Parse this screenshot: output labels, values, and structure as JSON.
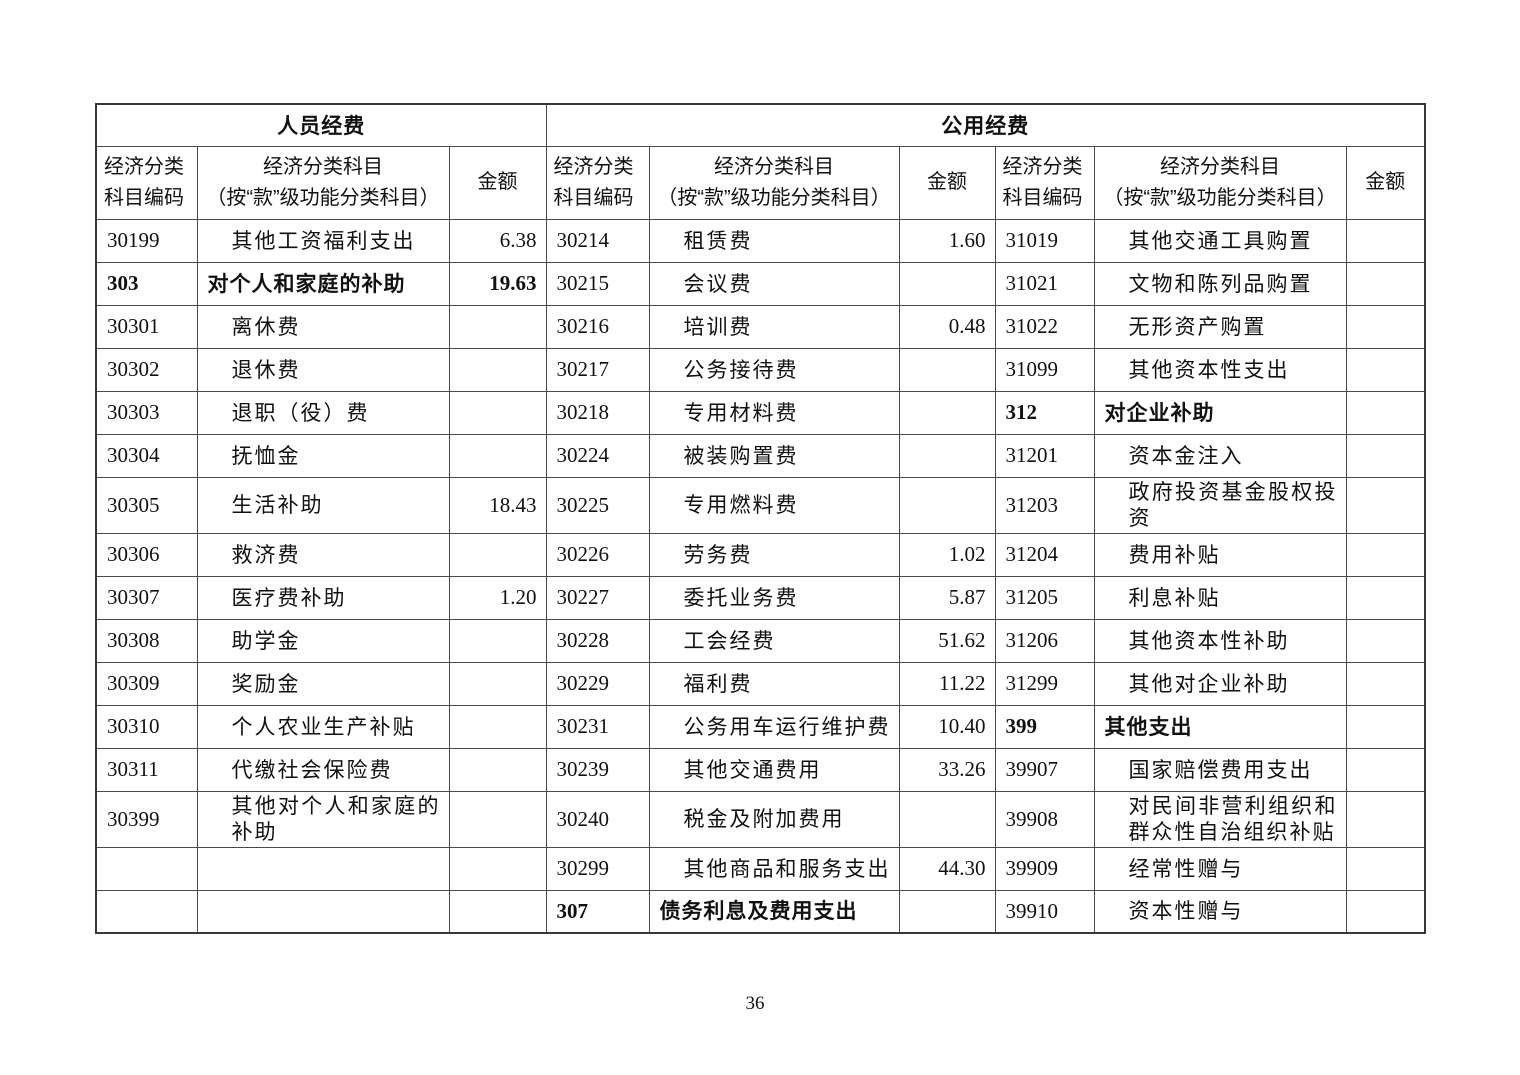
{
  "page_number": "36",
  "table": {
    "sections": [
      {
        "title": "人员经费"
      },
      {
        "title": "公用经费"
      }
    ],
    "column_headers": {
      "code_line1": "经济分类",
      "code_line2": "科目编码",
      "subject_line1": "经济分类科目",
      "subject_line2": "（按“款”级功能分类科目）",
      "amount": "金额"
    },
    "groups": [
      {
        "rows": [
          {
            "code": "30199",
            "name": "其他工资福利支出",
            "amount": "6.38"
          },
          {
            "code": "303",
            "name": "对个人和家庭的补助",
            "amount": "19.63",
            "section": true
          },
          {
            "code": "30301",
            "name": "离休费",
            "amount": ""
          },
          {
            "code": "30302",
            "name": "退休费",
            "amount": ""
          },
          {
            "code": "30303",
            "name": "退职（役）费",
            "amount": ""
          },
          {
            "code": "30304",
            "name": "抚恤金",
            "amount": ""
          },
          {
            "code": "30305",
            "name": "生活补助",
            "amount": "18.43"
          },
          {
            "code": "30306",
            "name": "救济费",
            "amount": ""
          },
          {
            "code": "30307",
            "name": "医疗费补助",
            "amount": "1.20"
          },
          {
            "code": "30308",
            "name": "助学金",
            "amount": ""
          },
          {
            "code": "30309",
            "name": "奖励金",
            "amount": ""
          },
          {
            "code": "30310",
            "name": "个人农业生产补贴",
            "amount": ""
          },
          {
            "code": "30311",
            "name": "代缴社会保险费",
            "amount": ""
          },
          {
            "code": "30399",
            "name": "其他对个人和家庭的补助",
            "amount": "",
            "wrap": true
          },
          {
            "code": "",
            "name": "",
            "amount": ""
          },
          {
            "code": "",
            "name": "",
            "amount": ""
          }
        ]
      },
      {
        "rows": [
          {
            "code": "30214",
            "name": "租赁费",
            "amount": "1.60"
          },
          {
            "code": "30215",
            "name": "会议费",
            "amount": ""
          },
          {
            "code": "30216",
            "name": "培训费",
            "amount": "0.48"
          },
          {
            "code": "30217",
            "name": "公务接待费",
            "amount": ""
          },
          {
            "code": "30218",
            "name": "专用材料费",
            "amount": ""
          },
          {
            "code": "30224",
            "name": "被装购置费",
            "amount": ""
          },
          {
            "code": "30225",
            "name": "专用燃料费",
            "amount": ""
          },
          {
            "code": "30226",
            "name": "劳务费",
            "amount": "1.02"
          },
          {
            "code": "30227",
            "name": "委托业务费",
            "amount": "5.87"
          },
          {
            "code": "30228",
            "name": "工会经费",
            "amount": "51.62"
          },
          {
            "code": "30229",
            "name": "福利费",
            "amount": "11.22"
          },
          {
            "code": "30231",
            "name": "公务用车运行维护费",
            "amount": "10.40"
          },
          {
            "code": "30239",
            "name": "其他交通费用",
            "amount": "33.26"
          },
          {
            "code": "30240",
            "name": "税金及附加费用",
            "amount": ""
          },
          {
            "code": "30299",
            "name": "其他商品和服务支出",
            "amount": "44.30"
          },
          {
            "code": "307",
            "name": "债务利息及费用支出",
            "amount": "",
            "section": true
          }
        ]
      },
      {
        "rows": [
          {
            "code": "31019",
            "name": "其他交通工具购置",
            "amount": ""
          },
          {
            "code": "31021",
            "name": "文物和陈列品购置",
            "amount": ""
          },
          {
            "code": "31022",
            "name": "无形资产购置",
            "amount": ""
          },
          {
            "code": "31099",
            "name": "其他资本性支出",
            "amount": ""
          },
          {
            "code": "312",
            "name": "对企业补助",
            "amount": "",
            "section": true
          },
          {
            "code": "31201",
            "name": "资本金注入",
            "amount": ""
          },
          {
            "code": "31203",
            "name": "政府投资基金股权投资",
            "amount": "",
            "wrap": true
          },
          {
            "code": "31204",
            "name": "费用补贴",
            "amount": ""
          },
          {
            "code": "31205",
            "name": "利息补贴",
            "amount": ""
          },
          {
            "code": "31206",
            "name": "其他资本性补助",
            "amount": ""
          },
          {
            "code": "31299",
            "name": "其他对企业补助",
            "amount": ""
          },
          {
            "code": "399",
            "name": "其他支出",
            "amount": "",
            "section": true
          },
          {
            "code": "39907",
            "name": "国家赔偿费用支出",
            "amount": ""
          },
          {
            "code": "39908",
            "name": "对民间非营利组织和群众性自治组织补贴",
            "amount": "",
            "wrap": true
          },
          {
            "code": "39909",
            "name": "经常性赠与",
            "amount": ""
          },
          {
            "code": "39910",
            "name": "资本性赠与",
            "amount": ""
          }
        ]
      }
    ]
  }
}
